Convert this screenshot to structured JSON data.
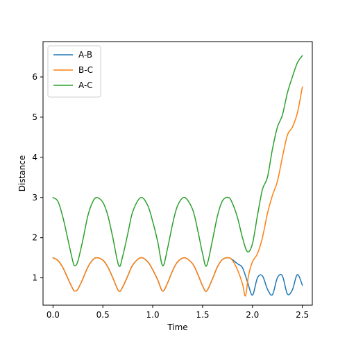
{
  "chart_data": {
    "type": "line",
    "title": "",
    "xlabel": "Time",
    "ylabel": "Distance",
    "xlim": [
      -0.1,
      2.6
    ],
    "ylim": [
      0.32,
      6.88
    ],
    "xticks": [
      0.0,
      0.5,
      1.0,
      1.5,
      2.0,
      2.5
    ],
    "xtick_labels": [
      "0.0",
      "0.5",
      "1.0",
      "1.5",
      "2.0",
      "2.5"
    ],
    "yticks": [
      1,
      2,
      3,
      4,
      5,
      6
    ],
    "ytick_labels": [
      "1",
      "2",
      "3",
      "4",
      "5",
      "6"
    ],
    "grid": false,
    "legend_position": "upper-left",
    "series": [
      {
        "name": "A-B",
        "color": "#1f77b4",
        "x": [
          0.0,
          0.05,
          0.1,
          0.15,
          0.2,
          0.22,
          0.25,
          0.3,
          0.35,
          0.4,
          0.44,
          0.5,
          0.55,
          0.6,
          0.66,
          0.7,
          0.75,
          0.8,
          0.88,
          0.95,
          1.0,
          1.05,
          1.1,
          1.15,
          1.2,
          1.25,
          1.32,
          1.4,
          1.45,
          1.5,
          1.54,
          1.6,
          1.65,
          1.7,
          1.76,
          1.8,
          1.85,
          1.9,
          1.95,
          2.0,
          2.05,
          2.1,
          2.15,
          2.2,
          2.25,
          2.3,
          2.35,
          2.4,
          2.45,
          2.5
        ],
        "y": [
          1.5,
          1.43,
          1.25,
          0.98,
          0.72,
          0.67,
          0.72,
          0.98,
          1.27,
          1.45,
          1.5,
          1.44,
          1.27,
          1.0,
          0.67,
          0.78,
          1.05,
          1.32,
          1.5,
          1.4,
          1.2,
          0.95,
          0.67,
          0.88,
          1.18,
          1.4,
          1.5,
          1.35,
          1.1,
          0.8,
          0.67,
          0.98,
          1.28,
          1.46,
          1.5,
          1.45,
          1.35,
          1.25,
          0.9,
          0.57,
          1.0,
          1.05,
          0.72,
          0.58,
          1.0,
          1.05,
          0.6,
          0.7,
          1.08,
          0.82
        ]
      },
      {
        "name": "B-C",
        "color": "#ff7f0e",
        "x": [
          0.0,
          0.05,
          0.1,
          0.15,
          0.2,
          0.22,
          0.25,
          0.3,
          0.35,
          0.4,
          0.44,
          0.5,
          0.55,
          0.6,
          0.66,
          0.7,
          0.75,
          0.8,
          0.88,
          0.95,
          1.0,
          1.05,
          1.1,
          1.15,
          1.2,
          1.25,
          1.32,
          1.4,
          1.45,
          1.5,
          1.54,
          1.6,
          1.65,
          1.7,
          1.76,
          1.8,
          1.85,
          1.9,
          1.93,
          1.96,
          2.0,
          2.05,
          2.1,
          2.15,
          2.2,
          2.25,
          2.3,
          2.35,
          2.4,
          2.45,
          2.5
        ],
        "y": [
          1.5,
          1.43,
          1.25,
          0.98,
          0.72,
          0.67,
          0.72,
          0.98,
          1.27,
          1.45,
          1.5,
          1.44,
          1.27,
          1.0,
          0.67,
          0.78,
          1.05,
          1.32,
          1.5,
          1.4,
          1.2,
          0.95,
          0.67,
          0.88,
          1.18,
          1.4,
          1.5,
          1.35,
          1.1,
          0.8,
          0.67,
          0.98,
          1.28,
          1.46,
          1.5,
          1.43,
          1.2,
          0.85,
          0.55,
          1.05,
          1.4,
          1.6,
          2.0,
          2.6,
          3.05,
          3.4,
          4.0,
          4.55,
          4.75,
          5.1,
          5.75
        ]
      },
      {
        "name": "A-C",
        "color": "#2ca02c",
        "x": [
          0.0,
          0.05,
          0.1,
          0.15,
          0.2,
          0.22,
          0.25,
          0.3,
          0.35,
          0.4,
          0.44,
          0.5,
          0.55,
          0.6,
          0.66,
          0.7,
          0.75,
          0.8,
          0.88,
          0.95,
          1.0,
          1.05,
          1.1,
          1.15,
          1.2,
          1.25,
          1.32,
          1.4,
          1.45,
          1.5,
          1.54,
          1.6,
          1.65,
          1.7,
          1.76,
          1.8,
          1.85,
          1.9,
          1.95,
          2.0,
          2.05,
          2.1,
          2.15,
          2.2,
          2.25,
          2.3,
          2.35,
          2.4,
          2.45,
          2.5
        ],
        "y": [
          3.0,
          2.9,
          2.5,
          1.95,
          1.4,
          1.3,
          1.42,
          1.95,
          2.55,
          2.9,
          3.0,
          2.88,
          2.55,
          2.0,
          1.3,
          1.55,
          2.1,
          2.65,
          3.0,
          2.8,
          2.4,
          1.9,
          1.3,
          1.75,
          2.35,
          2.8,
          3.0,
          2.7,
          2.2,
          1.6,
          1.3,
          1.95,
          2.55,
          2.92,
          3.0,
          2.85,
          2.5,
          2.0,
          1.65,
          1.85,
          2.55,
          3.2,
          3.5,
          4.2,
          4.75,
          5.05,
          5.6,
          6.0,
          6.35,
          6.53
        ]
      }
    ]
  }
}
